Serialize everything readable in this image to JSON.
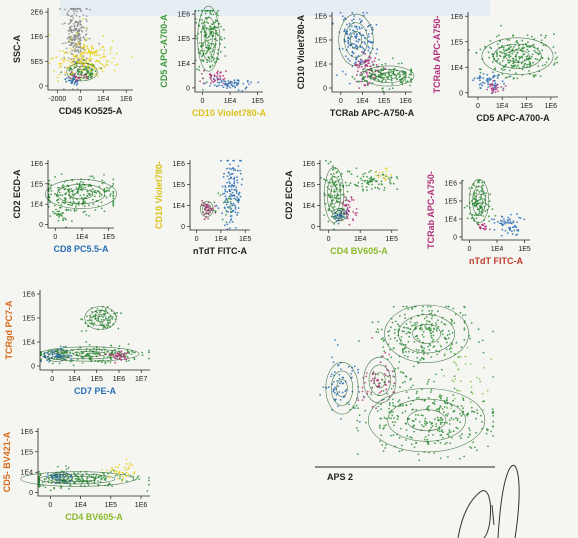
{
  "colors": {
    "green": "#2f8f3a",
    "lightgreen": "#7ec850",
    "blue": "#2a6fb5",
    "magenta": "#b0307a",
    "yellow": "#e8d21f",
    "gray": "#8c8c8c",
    "labelGreen": "#3a9a3a",
    "labelYellow": "#d9c21a",
    "labelBlue": "#2a6fb5",
    "labelMagenta": "#b0307a",
    "labelRed": "#c0392b",
    "labelOrange": "#d76b1a",
    "labelLime": "#8aba2a"
  },
  "chart_data": [
    {
      "type": "scatter",
      "xlabel": "CD45 KO525-A",
      "ylabel": "SSC-A",
      "xticks": [
        "-2000",
        "0",
        "1E4",
        "1E6"
      ],
      "yticks": [
        "2E6",
        "1E6",
        "5E5",
        "0"
      ],
      "xcolor": "#222",
      "ycolor": "#222"
    },
    {
      "type": "scatter",
      "xlabel": "CD10 Violet780-A",
      "ylabel": "CD5 APC-A700-A",
      "xticks": [
        "0",
        "1E4",
        "1E5"
      ],
      "yticks": [
        "1E6",
        "1E5",
        "1E4",
        "0"
      ],
      "xcolor": "#d9c21a",
      "ycolor": "#3a9a3a"
    },
    {
      "type": "scatter",
      "xlabel": "TCRab APC-A750-A",
      "ylabel": "CD10 Violet780-A",
      "xticks": [
        "0",
        "1E4",
        "1E5",
        "1E6"
      ],
      "yticks": [
        "1E6",
        "1E5",
        "1E4",
        "0"
      ],
      "xcolor": "#222",
      "ycolor": "#222"
    },
    {
      "type": "scatter",
      "xlabel": "CD5 APC-A700-A",
      "ylabel": "TCRab APC-A750-",
      "xticks": [
        "0",
        "1E4",
        "1E5",
        "1E6"
      ],
      "yticks": [
        "1E6",
        "1E5",
        "1E4",
        "0"
      ],
      "xcolor": "#222",
      "ycolor": "#b0307a"
    },
    {
      "type": "scatter",
      "xlabel": "CD8 PC5.5-A",
      "ylabel": "CD2 ECD-A",
      "xticks": [
        "0",
        "1E4",
        "1E5"
      ],
      "yticks": [
        "1E6",
        "1E5",
        "1E4",
        "0"
      ],
      "xcolor": "#2a6fb5",
      "ycolor": "#222"
    },
    {
      "type": "scatter",
      "xlabel": "nTdT FITC-A",
      "ylabel": "CD10 Violet780-",
      "xticks": [
        "0",
        "1E4",
        "1E5"
      ],
      "yticks": [
        "1E6",
        "1E5",
        "1E4",
        "0"
      ],
      "xcolor": "#222",
      "ycolor": "#d9c21a"
    },
    {
      "type": "scatter",
      "xlabel": "CD4 BV605-A",
      "ylabel": "CD2 ECD-A",
      "xticks": [
        "0",
        "1E4",
        "1E5"
      ],
      "yticks": [
        "1E6",
        "1E5",
        "1E4",
        "0"
      ],
      "xcolor": "#8aba2a",
      "ycolor": "#222"
    },
    {
      "type": "scatter",
      "xlabel": "nTdT FITC-A",
      "ylabel": "TCRab APC-A750-",
      "xticks": [
        "0",
        "1E4",
        "1E5"
      ],
      "yticks": [
        "1E6",
        "1E5",
        "1E4",
        "0"
      ],
      "xcolor": "#c0392b",
      "ycolor": "#b0307a"
    },
    {
      "type": "scatter",
      "xlabel": "CD7 PE-A",
      "ylabel": "TCRgd PC7-A",
      "xticks": [
        "0",
        "1E4",
        "1E5",
        "1E6",
        "1E7"
      ],
      "yticks": [
        "1E6",
        "1E5",
        "1E4",
        "0"
      ],
      "xcolor": "#2a6fb5",
      "ycolor": "#d76b1a"
    },
    {
      "type": "scatter",
      "xlabel": "APS 2",
      "ylabel": "",
      "xticks": [],
      "yticks": [],
      "xcolor": "#222",
      "ycolor": "#222"
    },
    {
      "type": "scatter",
      "xlabel": "CD4 BV605-A",
      "ylabel": "CD5- BV421-A",
      "xticks": [
        "0",
        "1E4",
        "1E5",
        "1E6"
      ],
      "yticks": [
        "1E6",
        "1E5",
        "1E4",
        "0"
      ],
      "xcolor": "#8aba2a",
      "ycolor": "#d76b1a"
    }
  ]
}
